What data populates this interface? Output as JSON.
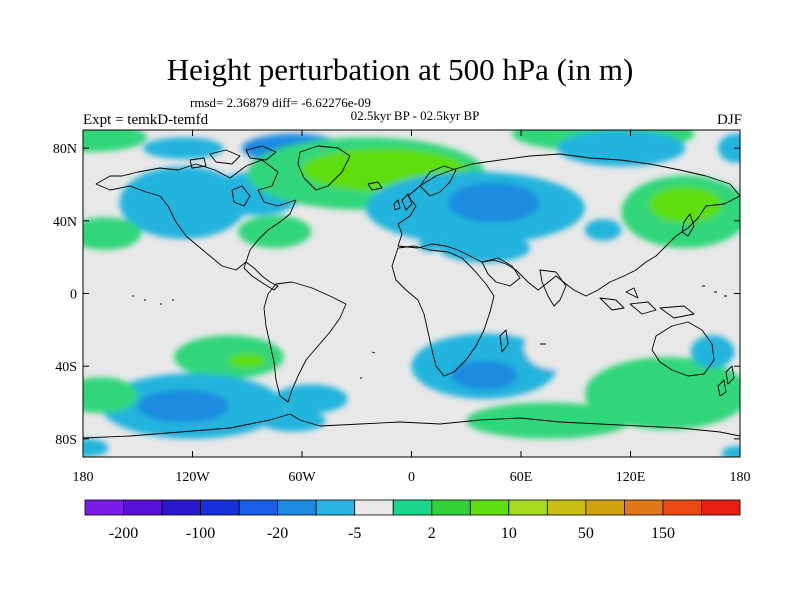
{
  "title": "Height perturbation at 500 hPa (in m)",
  "stats": "rmsd= 2.36879 diff= -6.62276e-09",
  "period": "02.5kyr BP - 02.5kyr BP",
  "experiment": "Expt = temkD-temfd",
  "season": "DJF",
  "map": {
    "lon_range": [
      -180,
      180
    ],
    "lat_range": [
      -90,
      90
    ],
    "background_color": "#e8e8e8",
    "coastline_color": "#000000",
    "x_ticks": [
      {
        "lon": -180,
        "label": "180"
      },
      {
        "lon": -120,
        "label": "120W"
      },
      {
        "lon": -60,
        "label": "60W"
      },
      {
        "lon": 0,
        "label": "0"
      },
      {
        "lon": 60,
        "label": "60E"
      },
      {
        "lon": 120,
        "label": "120E"
      },
      {
        "lon": 180,
        "label": "180"
      }
    ],
    "y_ticks": [
      {
        "lat": 80,
        "label": "80N"
      },
      {
        "lat": 40,
        "label": "40N"
      },
      {
        "lat": 0,
        "label": "0"
      },
      {
        "lat": -40,
        "label": "40S"
      },
      {
        "lat": -80,
        "label": "80S"
      }
    ],
    "anomaly_regions": [
      {
        "lon": -175,
        "lat": 86,
        "rlon": 30,
        "rlat": 8,
        "level": "green"
      },
      {
        "lon": -125,
        "lat": 80,
        "rlon": 22,
        "rlat": 6,
        "level": "cyan"
      },
      {
        "lon": -65,
        "lat": 80,
        "rlon": 28,
        "rlat": 8,
        "level": "blue"
      },
      {
        "lon": -125,
        "lat": 50,
        "rlon": 35,
        "rlat": 20,
        "level": "cyan"
      },
      {
        "lon": -85,
        "lat": 55,
        "rlon": 25,
        "rlat": 12,
        "level": "cyan"
      },
      {
        "lon": -50,
        "lat": 57,
        "rlon": 12,
        "rlat": 6,
        "level": "blue"
      },
      {
        "lon": -168,
        "lat": 33,
        "rlon": 20,
        "rlat": 9,
        "level": "green"
      },
      {
        "lon": -75,
        "lat": 34,
        "rlon": 20,
        "rlat": 9,
        "level": "green"
      },
      {
        "lon": -25,
        "lat": 66,
        "rlon": 65,
        "rlat": 20,
        "level": "green"
      },
      {
        "lon": -15,
        "lat": 68,
        "rlon": 45,
        "rlat": 12,
        "level": "lime"
      },
      {
        "lon": -5,
        "lat": 50,
        "rlon": 4,
        "rlat": 3,
        "level": "yellow"
      },
      {
        "lon": 35,
        "lat": 47,
        "rlon": 60,
        "rlat": 20,
        "level": "cyan"
      },
      {
        "lon": 45,
        "lat": 50,
        "rlon": 25,
        "rlat": 11,
        "level": "blue"
      },
      {
        "lon": 10,
        "lat": 27,
        "rlon": 6,
        "rlat": 4,
        "level": "cyan"
      },
      {
        "lon": 40,
        "lat": 25,
        "rlon": 25,
        "rlat": 8,
        "level": "cyan"
      },
      {
        "lon": 105,
        "lat": 35,
        "rlon": 10,
        "rlat": 6,
        "level": "cyan"
      },
      {
        "lon": 105,
        "lat": 88,
        "rlon": 50,
        "rlat": 10,
        "level": "green"
      },
      {
        "lon": 115,
        "lat": 80,
        "rlon": 35,
        "rlat": 10,
        "level": "cyan"
      },
      {
        "lon": 150,
        "lat": 45,
        "rlon": 35,
        "rlat": 20,
        "level": "green"
      },
      {
        "lon": 150,
        "lat": 49,
        "rlon": 20,
        "rlat": 10,
        "level": "lime"
      },
      {
        "lon": 178,
        "lat": 80,
        "rlon": 10,
        "rlat": 8,
        "level": "cyan"
      },
      {
        "lon": -100,
        "lat": -35,
        "rlon": 30,
        "rlat": 12,
        "level": "green"
      },
      {
        "lon": -90,
        "lat": -37,
        "rlon": 10,
        "rlat": 4,
        "level": "lime"
      },
      {
        "lon": -120,
        "lat": -62,
        "rlon": 50,
        "rlat": 18,
        "level": "cyan"
      },
      {
        "lon": -125,
        "lat": -62,
        "rlon": 25,
        "rlat": 9,
        "level": "blue"
      },
      {
        "lon": -170,
        "lat": -56,
        "rlon": 20,
        "rlat": 10,
        "level": "green"
      },
      {
        "lon": -55,
        "lat": -58,
        "rlon": 20,
        "rlat": 8,
        "level": "cyan"
      },
      {
        "lon": -65,
        "lat": -70,
        "rlon": 18,
        "rlat": 6,
        "level": "cyan"
      },
      {
        "lon": 40,
        "lat": -40,
        "rlon": 40,
        "rlat": 18,
        "level": "cyan"
      },
      {
        "lon": 40,
        "lat": -45,
        "rlon": 18,
        "rlat": 8,
        "level": "blue"
      },
      {
        "lon": 75,
        "lat": -70,
        "rlon": 45,
        "rlat": 10,
        "level": "green"
      },
      {
        "lon": 140,
        "lat": -55,
        "rlon": 45,
        "rlat": 20,
        "level": "green"
      },
      {
        "lon": 165,
        "lat": -32,
        "rlon": 12,
        "rlat": 9,
        "level": "cyan"
      },
      {
        "lon": 80,
        "lat": -30,
        "rlon": 18,
        "rlat": 12,
        "level": "lightgray"
      },
      {
        "lon": -178,
        "lat": -85,
        "rlon": 12,
        "rlat": 5,
        "level": "cyan"
      },
      {
        "lon": 178,
        "lat": -88,
        "rlon": 8,
        "rlat": 4,
        "level": "cyan"
      }
    ],
    "level_colors": {
      "lightgray": "#e8e8e8",
      "green": "#33d67a",
      "lime": "#5ede10",
      "yellow": "#c8dc1e",
      "cyan": "#22b4dc",
      "blue": "#1a8be0"
    }
  },
  "colorbar": {
    "colors": [
      "#7a1be8",
      "#5a10d6",
      "#2a16cc",
      "#1631dc",
      "#1a5ee8",
      "#1a8be0",
      "#2ab4e4",
      "#e8e8e8",
      "#1ad68e",
      "#33d13a",
      "#5ede10",
      "#a7dc1e",
      "#c9be14",
      "#d2a20e",
      "#e0781a",
      "#e84a12",
      "#e81e10"
    ],
    "labels": [
      {
        "index": 1,
        "text": "-200"
      },
      {
        "index": 3,
        "text": "-100"
      },
      {
        "index": 5,
        "text": "-20"
      },
      {
        "index": 7,
        "text": "-5"
      },
      {
        "index": 9,
        "text": "2"
      },
      {
        "index": 11,
        "text": "10"
      },
      {
        "index": 13,
        "text": "50"
      },
      {
        "index": 15,
        "text": "150"
      }
    ]
  }
}
